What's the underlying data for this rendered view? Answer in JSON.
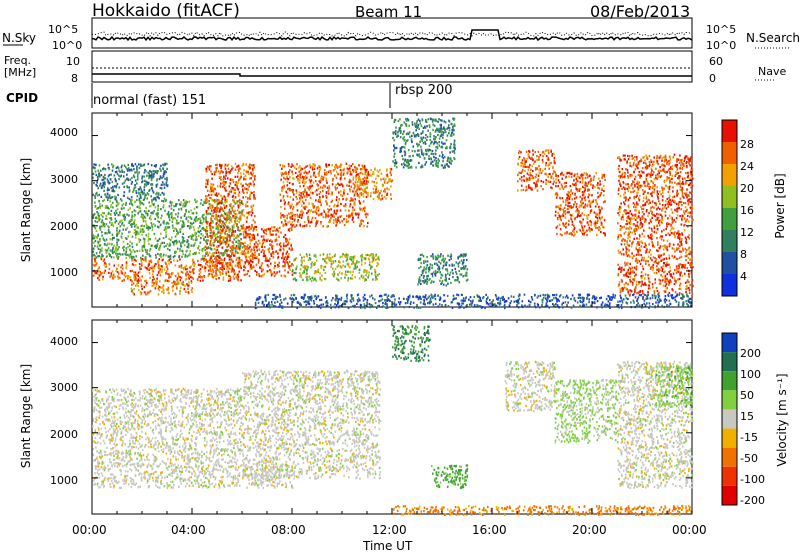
{
  "header": {
    "station": "Hokkaido (fitACF)",
    "beam": "Beam 11",
    "date": "08/Feb/2013"
  },
  "summary_panels": {
    "nsky_label": "N.Sky",
    "nsky_ticks": [
      "10^5",
      "10^0"
    ],
    "nsearch_label": "N.Search",
    "nsearch_ticks": [
      "10^5",
      "10^0"
    ],
    "freq_label": "Freq.",
    "freq_unit": "[MHz]",
    "freq_ticks": [
      "10",
      "8"
    ],
    "nave_label": "Nave",
    "nave_ticks": [
      "60",
      "0"
    ],
    "cpid_label": "CPID",
    "cpid_modes": [
      "normal (fast) 151",
      "rbsp 200"
    ]
  },
  "x_axis": {
    "label": "Time UT",
    "ticks": [
      "00:00",
      "04:00",
      "08:00",
      "12:00",
      "16:00",
      "20:00",
      "00:00"
    ]
  },
  "y_axis": {
    "label": "Slant Range [km]",
    "ticks": [
      "1000",
      "2000",
      "3000",
      "4000"
    ]
  },
  "power_colorbar": {
    "label": "Power [dB]",
    "ticks": [
      "4",
      "8",
      "12",
      "16",
      "20",
      "24",
      "28"
    ],
    "colors": [
      "#1030e0",
      "#2050a0",
      "#308060",
      "#40a040",
      "#90c020",
      "#f0a000",
      "#f06000",
      "#e81000"
    ]
  },
  "velocity_colorbar": {
    "label": "Velocity [m s⁻¹]",
    "ticks": [
      "200",
      "100",
      "50",
      "15",
      "-15",
      "-50",
      "-100",
      "-200"
    ],
    "colors": [
      "#1040c0",
      "#207050",
      "#40a030",
      "#80d040",
      "#c8c8c0",
      "#f0b000",
      "#f07000",
      "#f03000",
      "#e00000"
    ]
  },
  "chart_data": {
    "type": "heatmap",
    "x_range_hours": [
      0,
      24
    ],
    "y_range_km": [
      200,
      4500
    ],
    "panels": [
      {
        "name": "Power [dB]",
        "regions": [
          {
            "t0": 0.0,
            "t1": 6.0,
            "r0": 800,
            "r1": 1300,
            "value": 26
          },
          {
            "t0": 0.0,
            "t1": 6.0,
            "r0": 1300,
            "r1": 2600,
            "value": 14
          },
          {
            "t0": 0.0,
            "t1": 3.0,
            "r0": 2600,
            "r1": 3400,
            "value": 9
          },
          {
            "t0": 1.5,
            "t1": 4.0,
            "r0": 500,
            "r1": 800,
            "value": 24
          },
          {
            "t0": 4.5,
            "t1": 6.5,
            "r0": 1000,
            "r1": 3400,
            "value": 26
          },
          {
            "t0": 6.0,
            "t1": 8.0,
            "r0": 900,
            "r1": 2000,
            "value": 27
          },
          {
            "t0": 7.5,
            "t1": 11.0,
            "r0": 2000,
            "r1": 3400,
            "value": 26
          },
          {
            "t0": 8.0,
            "t1": 11.5,
            "r0": 800,
            "r1": 1400,
            "value": 18
          },
          {
            "t0": 10.5,
            "t1": 12.0,
            "r0": 2600,
            "r1": 3300,
            "value": 24
          },
          {
            "t0": 12.0,
            "t1": 14.5,
            "r0": 3300,
            "r1": 4400,
            "value": 10
          },
          {
            "t0": 13.0,
            "t1": 15.0,
            "r0": 700,
            "r1": 1400,
            "value": 10
          },
          {
            "t0": 17.0,
            "t1": 18.5,
            "r0": 2800,
            "r1": 3700,
            "value": 26
          },
          {
            "t0": 18.5,
            "t1": 20.5,
            "r0": 1800,
            "r1": 3200,
            "value": 27
          },
          {
            "t0": 21.0,
            "t1": 24.0,
            "r0": 500,
            "r1": 3600,
            "value": 27
          },
          {
            "t0": 6.5,
            "t1": 24.0,
            "r0": 200,
            "r1": 500,
            "value": 6
          }
        ]
      },
      {
        "name": "Velocity [m s⁻¹]",
        "regions": [
          {
            "t0": 0.0,
            "t1": 8.0,
            "r0": 800,
            "r1": 1300,
            "value": 0
          },
          {
            "t0": 0.0,
            "t1": 6.0,
            "r0": 1300,
            "r1": 3000,
            "value": 0
          },
          {
            "t0": 6.0,
            "t1": 11.5,
            "r0": 1000,
            "r1": 3400,
            "value": 0
          },
          {
            "t0": 12.0,
            "t1": 13.5,
            "r0": 3600,
            "r1": 4400,
            "value": 100
          },
          {
            "t0": 13.5,
            "t1": 15.0,
            "r0": 800,
            "r1": 1300,
            "value": 60
          },
          {
            "t0": 16.5,
            "t1": 18.5,
            "r0": 2500,
            "r1": 3600,
            "value": 0
          },
          {
            "t0": 18.5,
            "t1": 21.0,
            "r0": 1800,
            "r1": 3200,
            "value": 20
          },
          {
            "t0": 21.0,
            "t1": 24.0,
            "r0": 800,
            "r1": 3600,
            "value": 0
          },
          {
            "t0": 22.5,
            "t1": 24.0,
            "r0": 2600,
            "r1": 3500,
            "value": 40
          },
          {
            "t0": 12.0,
            "t1": 24.0,
            "r0": 200,
            "r1": 400,
            "value": -60
          }
        ]
      }
    ]
  }
}
